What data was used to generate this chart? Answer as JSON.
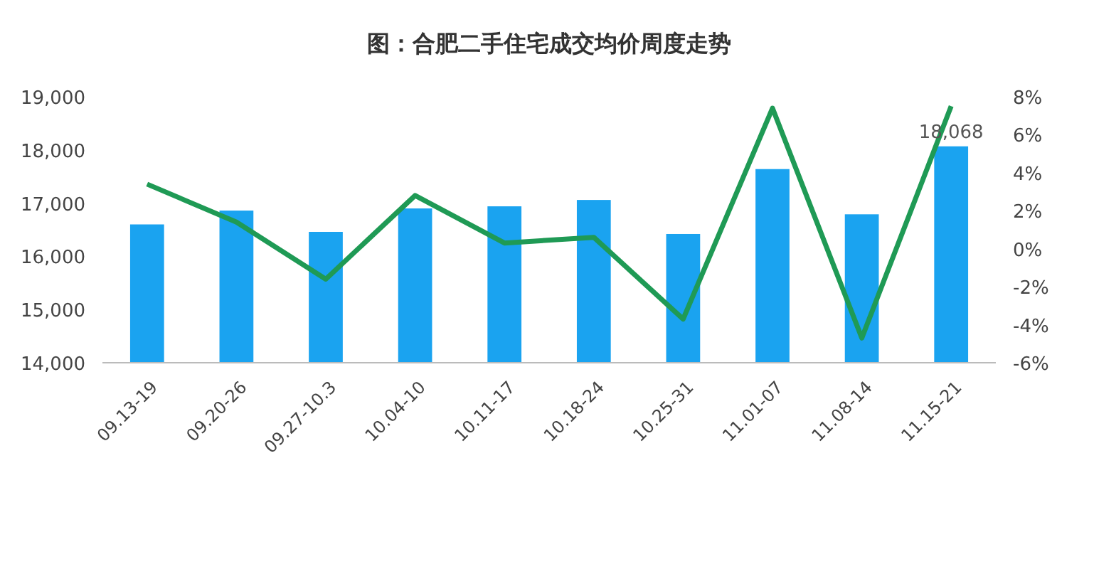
{
  "chart_data": {
    "type": "bar",
    "title": "图：合肥二手住宅成交均价周度走势",
    "categories": [
      "09.13-19",
      "09.20-26",
      "09.27-10.3",
      "10.04-10",
      "10.11-17",
      "10.18-24",
      "10.25-31",
      "11.01-07",
      "11.08-14",
      "11.15-21"
    ],
    "series": [
      {
        "color": "#1aa3f0",
        "values": [
          16600,
          16860,
          16460,
          16900,
          16940,
          17060,
          16420,
          17640,
          16790,
          18068
        ],
        "value_labels": [
          null,
          null,
          null,
          null,
          null,
          null,
          null,
          null,
          null,
          "18,068"
        ]
      },
      {
        "type": "line",
        "axis": "y2",
        "color": "#1f9a55",
        "values": [
          3.4,
          1.4,
          -1.6,
          2.8,
          0.3,
          0.6,
          -3.7,
          7.4,
          -4.7,
          7.5
        ]
      }
    ],
    "ylim": [
      14000,
      19000
    ],
    "yticks": [
      {
        "value": 14000,
        "label": "14,000"
      },
      {
        "value": 15000,
        "label": "15,000"
      },
      {
        "value": 16000,
        "label": "16,000"
      },
      {
        "value": 17000,
        "label": "17,000"
      },
      {
        "value": 18000,
        "label": "18,000"
      },
      {
        "value": 19000,
        "label": "19,000"
      }
    ],
    "y2lim": [
      -6,
      8
    ],
    "y2ticks": [
      {
        "value": -6,
        "label": "-6%"
      },
      {
        "value": -4,
        "label": "-4%"
      },
      {
        "value": -2,
        "label": "-2%"
      },
      {
        "value": 0,
        "label": "0%"
      },
      {
        "value": 2,
        "label": "2%"
      },
      {
        "value": 4,
        "label": "4%"
      },
      {
        "value": 6,
        "label": "6%"
      },
      {
        "value": 8,
        "label": "8%"
      }
    ],
    "grid": false,
    "marker": "none",
    "line_style": "solid"
  }
}
